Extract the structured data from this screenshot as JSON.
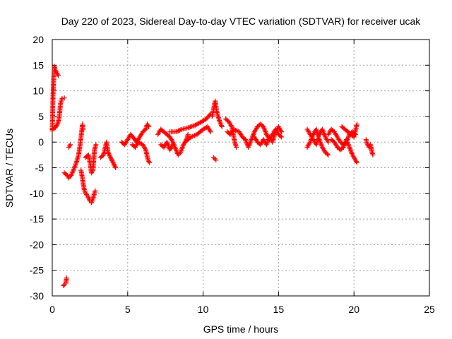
{
  "chart_data": {
    "type": "scatter",
    "title": "Day 220 of 2023, Sidereal Day-to-day VTEC variation (SDTVAR) for receiver ucak",
    "xlabel": "GPS time / hours",
    "ylabel": "SDTVAR / TECUs",
    "xlim": [
      0,
      25
    ],
    "ylim": [
      -30,
      20
    ],
    "xticks": [
      0,
      5,
      10,
      15,
      20,
      25
    ],
    "yticks": [
      -30,
      -25,
      -20,
      -15,
      -10,
      -5,
      0,
      5,
      10,
      15,
      20
    ],
    "grid": true,
    "marker": "+",
    "color": "#ff0000",
    "series": [
      {
        "name": "SDTVAR",
        "tracks": [
          [
            [
              0.0,
              2.2
            ],
            [
              0.05,
              9.0
            ],
            [
              0.1,
              12.5
            ],
            [
              0.15,
              14.8
            ],
            [
              0.2,
              14.0
            ],
            [
              0.3,
              13.5
            ],
            [
              0.4,
              13.0
            ]
          ],
          [
            [
              0.0,
              2.5
            ],
            [
              0.2,
              2.8
            ],
            [
              0.35,
              3.5
            ],
            [
              0.45,
              4.5
            ],
            [
              0.5,
              6.0
            ],
            [
              0.55,
              7.5
            ],
            [
              0.65,
              8.5
            ],
            [
              0.8,
              8.6
            ]
          ],
          [
            [
              0.75,
              -28.0
            ],
            [
              0.8,
              -27.8
            ],
            [
              0.9,
              -27.5
            ],
            [
              0.95,
              -26.5
            ]
          ],
          [
            [
              0.8,
              -6.0
            ],
            [
              1.0,
              -6.5
            ],
            [
              1.1,
              -7.0
            ],
            [
              1.25,
              -6.5
            ],
            [
              1.4,
              -5.5
            ],
            [
              1.6,
              -4.0
            ],
            [
              1.75,
              -2.5
            ],
            [
              1.85,
              -0.5
            ],
            [
              1.95,
              2.0
            ],
            [
              2.0,
              3.5
            ],
            [
              2.05,
              2.5
            ]
          ],
          [
            [
              1.1,
              -1.0
            ],
            [
              1.2,
              -0.5
            ]
          ],
          [
            [
              1.9,
              -5.5
            ],
            [
              2.0,
              -7.0
            ],
            [
              2.1,
              -9.0
            ],
            [
              2.2,
              -10.0
            ],
            [
              2.35,
              -10.5
            ],
            [
              2.5,
              -11.5
            ],
            [
              2.6,
              -11.8
            ],
            [
              2.7,
              -11.0
            ],
            [
              2.8,
              -10.0
            ],
            [
              2.85,
              -9.5
            ]
          ],
          [
            [
              2.2,
              -3.0
            ],
            [
              2.4,
              -2.5
            ],
            [
              2.5,
              -4.0
            ],
            [
              2.6,
              -6.0
            ],
            [
              2.7,
              -5.5
            ],
            [
              2.75,
              -3.5
            ],
            [
              2.8,
              -1.5
            ],
            [
              2.9,
              -0.5
            ]
          ],
          [
            [
              3.2,
              -3.0
            ],
            [
              3.4,
              -2.5
            ],
            [
              3.6,
              0.0
            ],
            [
              3.7,
              -2.0
            ],
            [
              4.2,
              -5.0
            ]
          ],
          [
            [
              4.6,
              0.0
            ],
            [
              4.8,
              -0.5
            ],
            [
              5.0,
              0.5
            ],
            [
              5.2,
              1.5
            ],
            [
              5.4,
              0.8
            ],
            [
              5.6,
              0.0
            ],
            [
              5.8,
              1.0
            ],
            [
              6.0,
              2.0
            ],
            [
              6.2,
              2.5
            ],
            [
              6.3,
              3.5
            ],
            [
              6.4,
              3.0
            ]
          ],
          [
            [
              5.3,
              -0.5
            ],
            [
              5.5,
              -1.0
            ],
            [
              5.7,
              0.0
            ],
            [
              6.0,
              -0.5
            ],
            [
              6.2,
              -1.5
            ],
            [
              6.35,
              -3.5
            ],
            [
              6.45,
              -4.0
            ]
          ],
          [
            [
              7.0,
              1.5
            ],
            [
              7.2,
              2.5
            ],
            [
              7.4,
              2.0
            ],
            [
              7.6,
              1.5
            ],
            [
              7.8,
              1.0
            ],
            [
              8.0,
              0.0
            ],
            [
              8.2,
              -1.5
            ],
            [
              8.35,
              -2.5
            ],
            [
              8.5,
              -2.0
            ],
            [
              8.7,
              -0.5
            ],
            [
              8.9,
              0.5
            ],
            [
              9.0,
              1.5
            ]
          ],
          [
            [
              7.2,
              -0.5
            ],
            [
              7.4,
              -1.0
            ],
            [
              7.6,
              0.0
            ],
            [
              7.8,
              -1.5
            ],
            [
              8.0,
              -0.5
            ]
          ],
          [
            [
              7.8,
              2.0
            ],
            [
              8.2,
              2.0
            ],
            [
              8.6,
              2.5
            ],
            [
              9.0,
              2.8
            ],
            [
              9.4,
              3.2
            ],
            [
              9.8,
              3.8
            ],
            [
              10.2,
              4.5
            ],
            [
              10.5,
              5.5
            ]
          ],
          [
            [
              8.8,
              0.0
            ],
            [
              9.2,
              1.0
            ],
            [
              9.6,
              1.5
            ],
            [
              10.0,
              2.5
            ],
            [
              10.3,
              3.0
            ],
            [
              10.5,
              2.0
            ]
          ],
          [
            [
              10.7,
              -3.0
            ],
            [
              10.85,
              -3.5
            ]
          ],
          [
            [
              10.6,
              5.0
            ],
            [
              10.7,
              6.5
            ],
            [
              10.8,
              8.0
            ],
            [
              10.9,
              6.0
            ],
            [
              11.0,
              5.0
            ],
            [
              11.1,
              4.0
            ],
            [
              11.25,
              3.0
            ]
          ],
          [
            [
              11.5,
              4.5
            ],
            [
              11.7,
              4.0
            ],
            [
              11.9,
              3.0
            ],
            [
              12.0,
              1.5
            ],
            [
              12.1,
              0.0
            ],
            [
              12.2,
              -1.0
            ]
          ],
          [
            [
              11.6,
              2.0
            ],
            [
              11.8,
              1.5
            ],
            [
              12.0,
              2.5
            ],
            [
              12.4,
              2.0
            ],
            [
              12.6,
              1.0
            ],
            [
              12.8,
              0.5
            ],
            [
              13.0,
              -1.0
            ],
            [
              13.2,
              0.5
            ],
            [
              13.4,
              2.0
            ],
            [
              13.6,
              3.0
            ],
            [
              13.8,
              3.5
            ],
            [
              14.0,
              3.0
            ],
            [
              14.2,
              1.5
            ],
            [
              14.4,
              0.5
            ],
            [
              14.6,
              1.5
            ],
            [
              14.8,
              2.5
            ],
            [
              15.0,
              1.5
            ],
            [
              15.2,
              1.0
            ]
          ],
          [
            [
              13.4,
              1.0
            ],
            [
              13.6,
              0.0
            ],
            [
              13.8,
              -0.5
            ],
            [
              14.0,
              0.5
            ],
            [
              14.2,
              -0.5
            ],
            [
              14.4,
              1.0
            ],
            [
              14.6,
              0.0
            ],
            [
              14.8,
              2.0
            ],
            [
              15.0,
              3.0
            ],
            [
              15.2,
              2.0
            ]
          ],
          [
            [
              16.9,
              2.5
            ],
            [
              17.1,
              1.5
            ],
            [
              17.3,
              0.5
            ],
            [
              17.5,
              -0.5
            ],
            [
              17.7,
              1.5
            ],
            [
              17.9,
              2.5
            ],
            [
              18.1,
              1.0
            ],
            [
              18.3,
              0.0
            ]
          ],
          [
            [
              16.9,
              -1.0
            ],
            [
              17.1,
              0.0
            ],
            [
              17.3,
              1.5
            ],
            [
              17.5,
              2.5
            ],
            [
              17.7,
              0.5
            ],
            [
              17.9,
              -1.0
            ],
            [
              18.1,
              -2.0
            ],
            [
              18.3,
              -2.5
            ]
          ],
          [
            [
              18.3,
              1.5
            ],
            [
              18.5,
              2.5
            ],
            [
              18.7,
              2.0
            ],
            [
              18.9,
              1.0
            ],
            [
              19.1,
              0.0
            ],
            [
              19.3,
              -0.5
            ],
            [
              19.5,
              0.0
            ],
            [
              19.7,
              1.5
            ],
            [
              19.9,
              2.0
            ],
            [
              20.1,
              1.5
            ]
          ],
          [
            [
              18.5,
              0.5
            ],
            [
              18.7,
              0.0
            ],
            [
              18.9,
              -1.0
            ],
            [
              19.1,
              -1.5
            ],
            [
              19.3,
              -1.0
            ],
            [
              19.5,
              0.5
            ],
            [
              19.7,
              -1.0
            ],
            [
              19.9,
              -2.5
            ],
            [
              20.1,
              -3.5
            ],
            [
              20.2,
              -4.0
            ]
          ],
          [
            [
              19.2,
              3.0
            ],
            [
              19.4,
              2.5
            ],
            [
              19.6,
              2.0
            ],
            [
              19.8,
              1.5
            ],
            [
              20.0,
              1.0
            ],
            [
              20.2,
              3.5
            ]
          ],
          [
            [
              20.8,
              0.5
            ],
            [
              20.9,
              -0.5
            ],
            [
              21.0,
              -1.0
            ],
            [
              21.1,
              -0.5
            ],
            [
              21.2,
              -2.0
            ],
            [
              21.25,
              -2.5
            ]
          ]
        ]
      }
    ]
  }
}
